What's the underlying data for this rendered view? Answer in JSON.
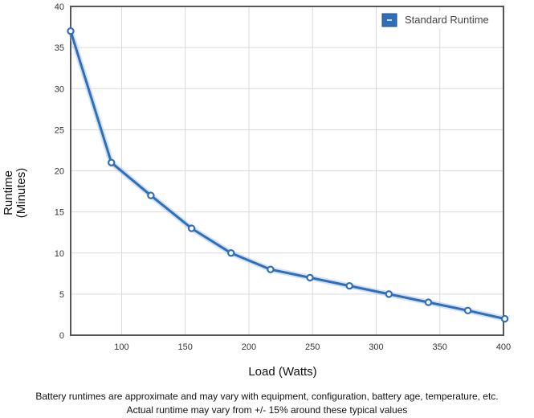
{
  "chart_data": {
    "type": "line",
    "xlabel": "Load (Watts)",
    "ylabel_lines": [
      "Runtime",
      "(Minutes)"
    ],
    "xlim": [
      60,
      400
    ],
    "ylim": [
      0,
      40
    ],
    "x_ticks": [
      100,
      150,
      200,
      250,
      300,
      350,
      400
    ],
    "y_ticks": [
      0,
      5,
      10,
      15,
      20,
      25,
      30,
      35,
      40
    ],
    "grid": true,
    "legend_position": "top-right",
    "series": [
      {
        "name": "Standard Runtime",
        "color": "#2f6fba",
        "x": [
          60,
          92,
          123,
          155,
          186,
          217,
          248,
          279,
          310,
          341,
          372,
          403
        ],
        "y": [
          37,
          21,
          17,
          13,
          10,
          8,
          7,
          6,
          5,
          4,
          3,
          2
        ]
      }
    ]
  },
  "footnotes": [
    "Battery runtimes are approximate and may vary with equipment, configuration, battery age, temperature, etc.",
    "Actual runtime may vary from +/- 15% around these typical values"
  ]
}
